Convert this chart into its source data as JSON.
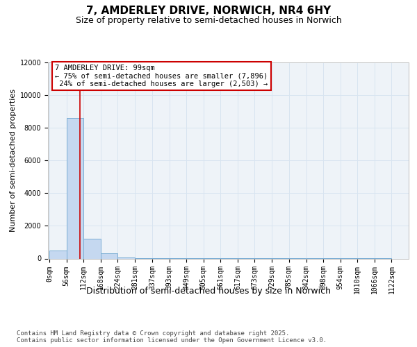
{
  "title": "7, AMDERLEY DRIVE, NORWICH, NR4 6HY",
  "subtitle": "Size of property relative to semi-detached houses in Norwich",
  "xlabel": "Distribution of semi-detached houses by size in Norwich",
  "ylabel": "Number of semi-detached properties",
  "property_size": 99,
  "property_label": "7 AMDERLEY DRIVE: 99sqm",
  "smaller_pct": 75,
  "smaller_count": 7896,
  "larger_pct": 24,
  "larger_count": 2503,
  "bin_width": 56,
  "bin_starts": [
    0,
    56,
    112,
    168,
    224,
    281,
    337,
    393,
    449,
    505,
    561,
    617,
    673,
    729,
    785,
    842,
    898,
    954,
    1010,
    1066
  ],
  "bin_counts": [
    500,
    8600,
    1200,
    300,
    50,
    5,
    5,
    5,
    5,
    5,
    5,
    5,
    5,
    5,
    5,
    5,
    5,
    5,
    5,
    5
  ],
  "bar_color": "#c5d8f0",
  "bar_edge_color": "#7aadd4",
  "vline_color": "#cc0000",
  "annotation_box_color": "#cc0000",
  "grid_color": "#d8e4f0",
  "ylim": [
    0,
    12000
  ],
  "yticks": [
    0,
    2000,
    4000,
    6000,
    8000,
    10000,
    12000
  ],
  "xlim_start": -5,
  "xlim_end": 1178,
  "footer_text": "Contains HM Land Registry data © Crown copyright and database right 2025.\nContains public sector information licensed under the Open Government Licence v3.0.",
  "title_fontsize": 11,
  "subtitle_fontsize": 9,
  "xlabel_fontsize": 9,
  "ylabel_fontsize": 8,
  "tick_fontsize": 7,
  "annotation_fontsize": 7.5,
  "footer_fontsize": 6.5
}
